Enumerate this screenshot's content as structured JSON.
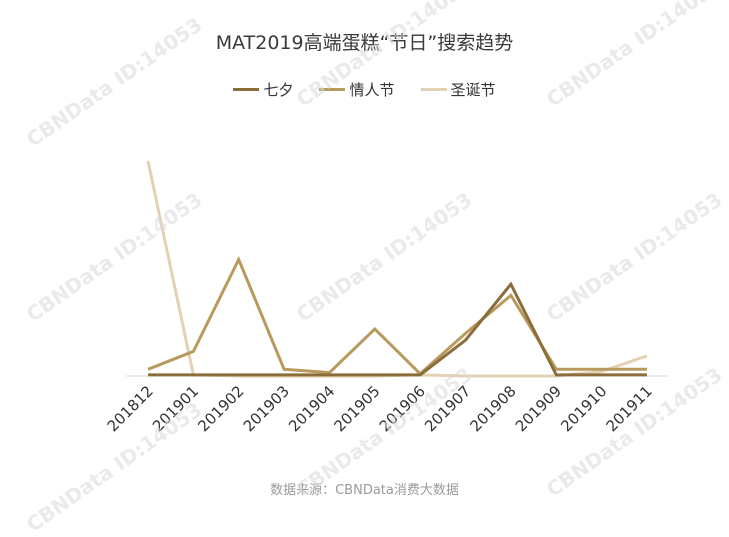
{
  "chart_data": {
    "type": "line",
    "title": "MAT2019高端蛋糕“节日”搜索趋势",
    "categories": [
      "201812",
      "201901",
      "201902",
      "201903",
      "201904",
      "201905",
      "201906",
      "201907",
      "201908",
      "201909",
      "201910",
      "201911"
    ],
    "series": [
      {
        "name": "七夕",
        "color": "#8a6d3b",
        "values": [
          0.5,
          0.5,
          0.5,
          0.5,
          0.5,
          0.5,
          0.5,
          16,
          41,
          0.5,
          0.5,
          0.5
        ]
      },
      {
        "name": "情人节",
        "color": "#b99a5e",
        "values": [
          3,
          11,
          52,
          3,
          1.5,
          21,
          1,
          19,
          36,
          3,
          3,
          3
        ]
      },
      {
        "name": "圣诞节",
        "color": "#e3d1b3",
        "values": [
          96,
          0.5,
          0,
          0,
          0,
          0,
          0.5,
          0,
          0,
          0,
          2,
          9
        ]
      }
    ],
    "ylim": [
      0,
      100
    ],
    "legend_position": "top-center",
    "grid": false,
    "source": "数据来源：CBNData消费大数据",
    "watermark": "CBNData ID:14053"
  }
}
